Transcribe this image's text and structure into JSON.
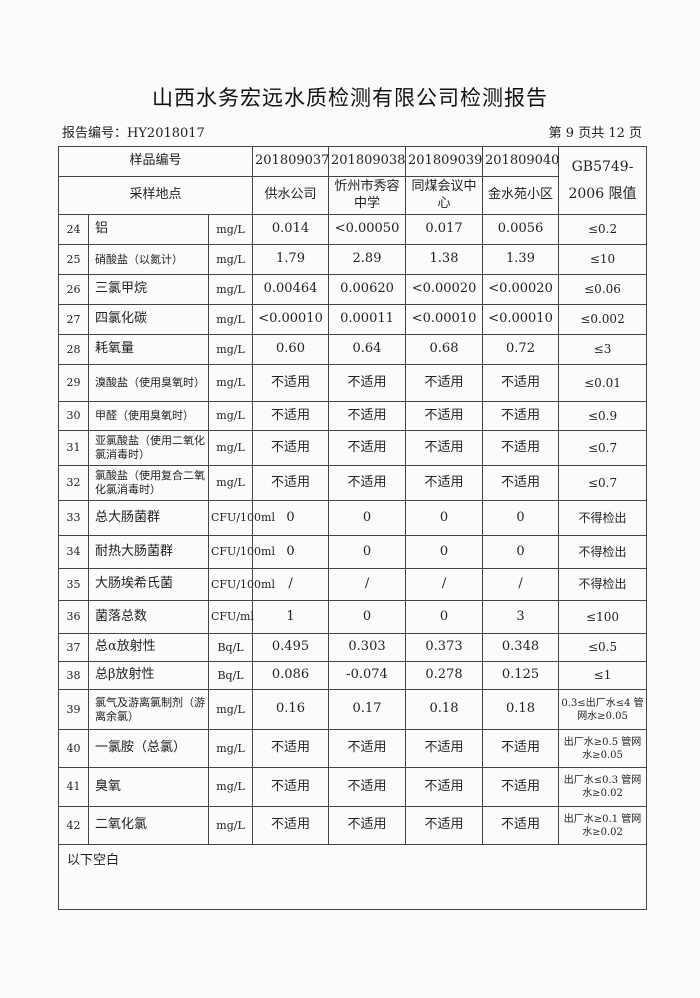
{
  "title": "山西水务宏远水质检测有限公司检测报告",
  "report_no": "报告编号：HY2018017",
  "page_info": "第 9 页共 12 页",
  "header": {
    "sample_no_label": "样品编号",
    "sample_nos": [
      "201809037",
      "201809038",
      "201809039",
      "201809040"
    ],
    "location_label": "采样地点",
    "locations": [
      "供水公司",
      "忻州市秀容中学",
      "同煤会议中心",
      "金水苑小区"
    ],
    "limit_label": "GB5749-2006 限值"
  },
  "rows": [
    {
      "no": "24",
      "name": "铝",
      "unit": "mg/L",
      "values": [
        "0.014",
        "<0.00050",
        "0.017",
        "0.0056"
      ],
      "limit": "≤0.2"
    },
    {
      "no": "25",
      "name": "硝酸盐（以氮计）",
      "unit": "mg/L",
      "values": [
        "1.79",
        "2.89",
        "1.38",
        "1.39"
      ],
      "limit": "≤10"
    },
    {
      "no": "26",
      "name": "三氯甲烷",
      "unit": "mg/L",
      "values": [
        "0.00464",
        "0.00620",
        "<0.00020",
        "<0.00020"
      ],
      "limit": "≤0.06"
    },
    {
      "no": "27",
      "name": "四氯化碳",
      "unit": "mg/L",
      "values": [
        "<0.00010",
        "0.00011",
        "<0.00010",
        "<0.00010"
      ],
      "limit": "≤0.002"
    },
    {
      "no": "28",
      "name": "耗氧量",
      "unit": "mg/L",
      "values": [
        "0.60",
        "0.64",
        "0.68",
        "0.72"
      ],
      "limit": "≤3"
    },
    {
      "no": "29",
      "name": "溴酸盐（使用臭氧时）",
      "unit": "mg/L",
      "values": [
        "不适用",
        "不适用",
        "不适用",
        "不适用"
      ],
      "limit": "≤0.01"
    },
    {
      "no": "30",
      "name": "甲醛（使用臭氧时）",
      "unit": "mg/L",
      "values": [
        "不适用",
        "不适用",
        "不适用",
        "不适用"
      ],
      "limit": "≤0.9"
    },
    {
      "no": "31",
      "name": "亚氯酸盐（使用二氧化氯消毒时）",
      "unit": "mg/L",
      "values": [
        "不适用",
        "不适用",
        "不适用",
        "不适用"
      ],
      "limit": "≤0.7"
    },
    {
      "no": "32",
      "name": "氯酸盐（使用复合二氧化氯消毒时）",
      "unit": "mg/L",
      "values": [
        "不适用",
        "不适用",
        "不适用",
        "不适用"
      ],
      "limit": "≤0.7"
    },
    {
      "no": "33",
      "name": "总大肠菌群",
      "unit": "CFU/100ml",
      "values": [
        "0",
        "0",
        "0",
        "0"
      ],
      "limit": "不得检出"
    },
    {
      "no": "34",
      "name": "耐热大肠菌群",
      "unit": "CFU/100ml",
      "values": [
        "0",
        "0",
        "0",
        "0"
      ],
      "limit": "不得检出"
    },
    {
      "no": "35",
      "name": "大肠埃希氏菌",
      "unit": "CFU/100ml",
      "values": [
        "/",
        "/",
        "/",
        "/"
      ],
      "limit": "不得检出"
    },
    {
      "no": "36",
      "name": "菌落总数",
      "unit": "CFU/ml",
      "values": [
        "1",
        "0",
        "0",
        "3"
      ],
      "limit": "≤100"
    },
    {
      "no": "37",
      "name": "总α放射性",
      "unit": "Bq/L",
      "values": [
        "0.495",
        "0.303",
        "0.373",
        "0.348"
      ],
      "limit": "≤0.5"
    },
    {
      "no": "38",
      "name": "总β放射性",
      "unit": "Bq/L",
      "values": [
        "0.086",
        "-0.074",
        "0.278",
        "0.125"
      ],
      "limit": "≤1"
    },
    {
      "no": "39",
      "name": "氯气及游离氯制剂（游离余氯）",
      "unit": "mg/L",
      "values": [
        "0.16",
        "0.17",
        "0.18",
        "0.18"
      ],
      "limit": "0.3≤出厂水≤4 管网水≥0.05"
    },
    {
      "no": "40",
      "name": "一氯胺（总氯）",
      "unit": "mg/L",
      "values": [
        "不适用",
        "不适用",
        "不适用",
        "不适用"
      ],
      "limit": "出厂水≥0.5 管网水≥0.05"
    },
    {
      "no": "41",
      "name": "臭氧",
      "unit": "mg/L",
      "values": [
        "不适用",
        "不适用",
        "不适用",
        "不适用"
      ],
      "limit": "出厂水≤0.3 管网水≥0.02"
    },
    {
      "no": "42",
      "name": "二氧化氯",
      "unit": "mg/L",
      "values": [
        "不适用",
        "不适用",
        "不适用",
        "不适用"
      ],
      "limit": "出厂水≥0.1 管网水≥0.02"
    }
  ],
  "note": "以下空白"
}
